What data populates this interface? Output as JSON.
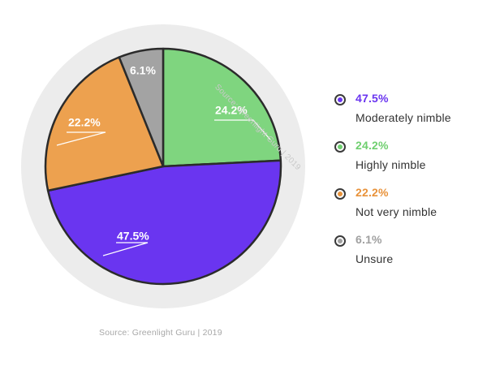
{
  "source_text": "Source: Greenlight Guru | 2019",
  "source_rotated": "Source: Greenlight Guru | 2019",
  "chart_data": {
    "type": "pie",
    "start_angle_deg": 0,
    "direction": "clockwise",
    "slices": [
      {
        "label": "Highly nimble",
        "value": 24.2,
        "display": "24.2%",
        "color": "#7fd57f",
        "legend_color": "#6fcf6f"
      },
      {
        "label": "Moderately nimble",
        "value": 47.5,
        "display": "47.5%",
        "color": "#6a35f0",
        "legend_color": "#6a35f0"
      },
      {
        "label": "Not very nimble",
        "value": 22.2,
        "display": "22.2%",
        "color": "#eda14f",
        "legend_color": "#e8923a"
      },
      {
        "label": "Unsure",
        "value": 6.1,
        "display": "6.1%",
        "color": "#a3a3a3",
        "legend_color": "#a0a0a0"
      }
    ],
    "ring_color": "#ececec",
    "slice_stroke_color": "#2b2b2b"
  },
  "legend": {
    "items": [
      {
        "pct": "47.5%",
        "label": "Moderately nimble",
        "color": "#6a35f0"
      },
      {
        "pct": "24.2%",
        "label": "Highly nimble",
        "color": "#6fcf6f"
      },
      {
        "pct": "22.2%",
        "label": "Not very nimble",
        "color": "#e8923a"
      },
      {
        "pct": "6.1%",
        "label": "Unsure",
        "color": "#a0a0a0"
      }
    ]
  }
}
